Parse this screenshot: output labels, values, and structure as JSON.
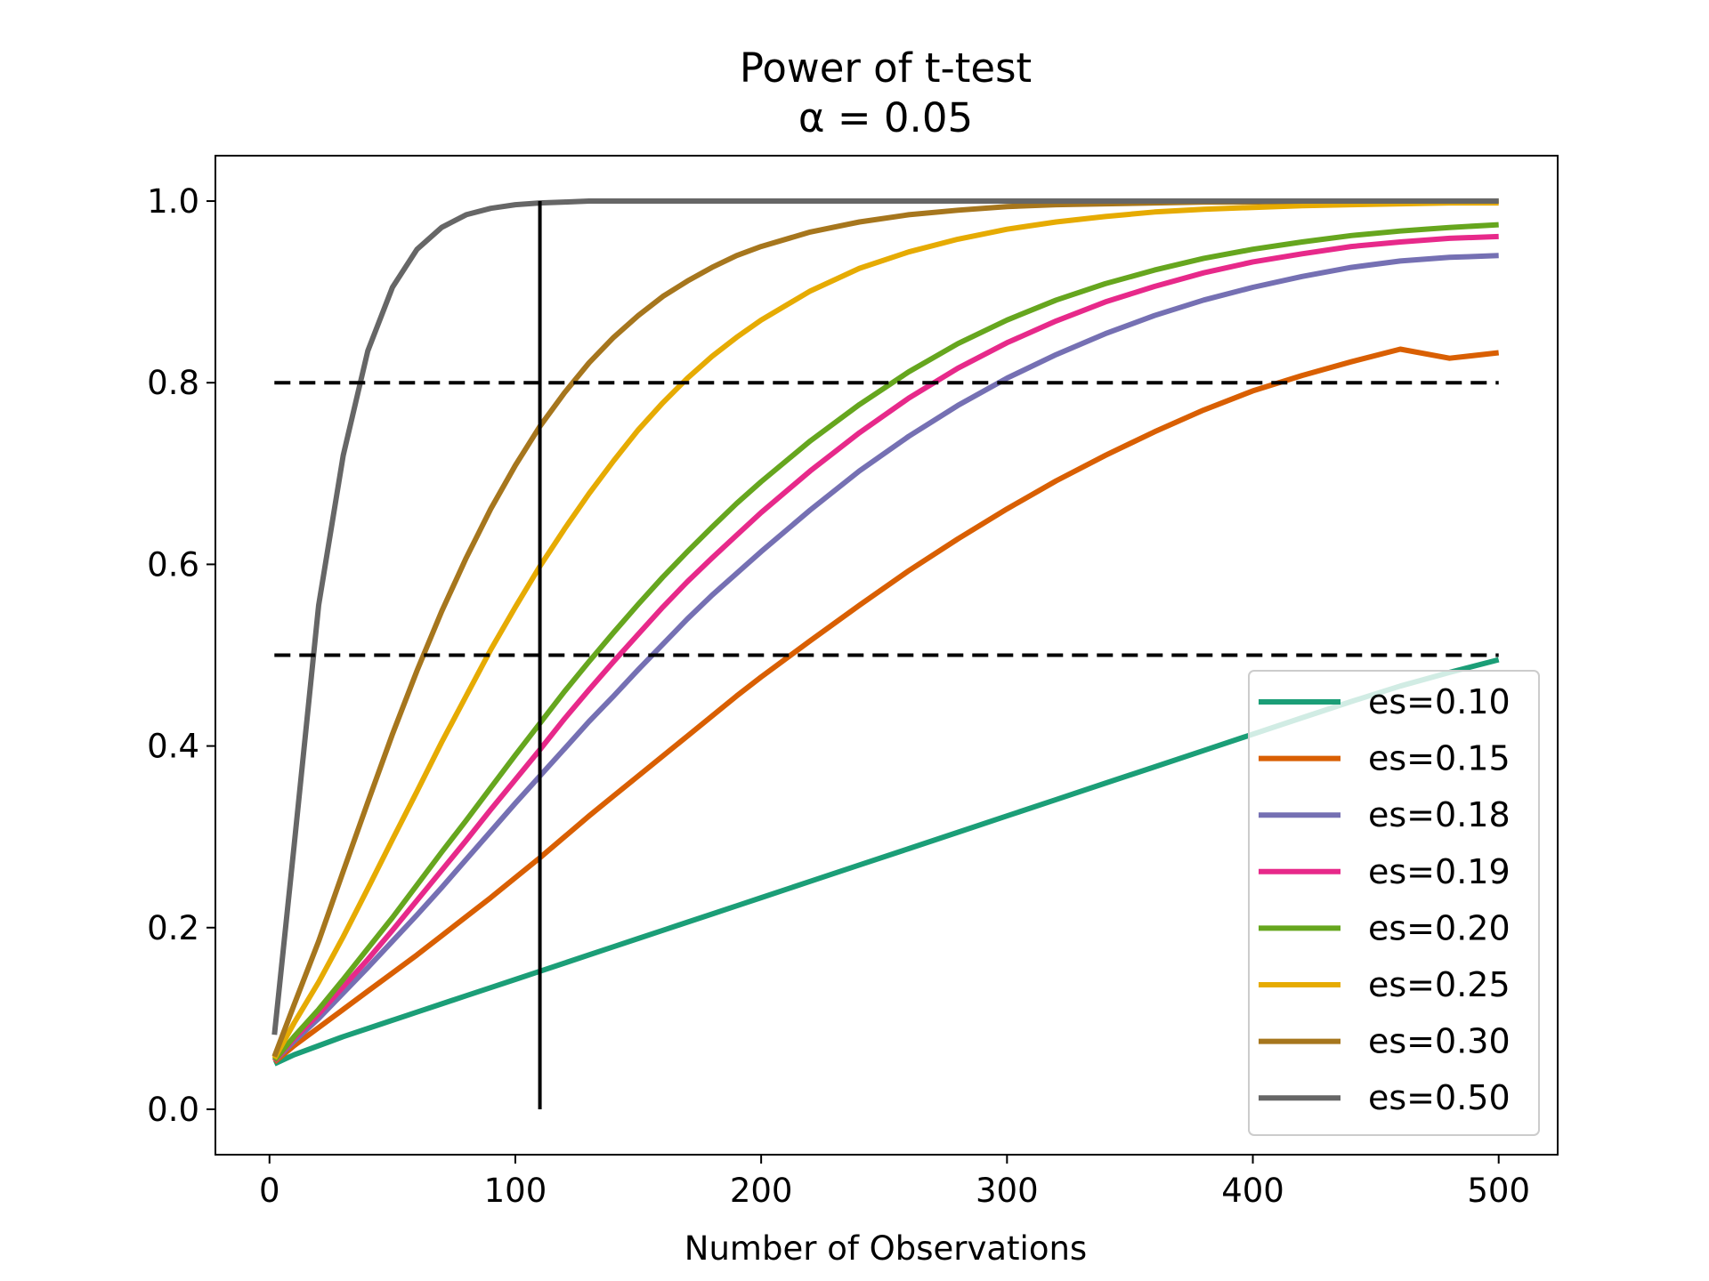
{
  "chart_data": {
    "type": "line",
    "title": "Power of t-test",
    "subtitle": "α = 0.05",
    "xlabel": "Number of Observations",
    "ylabel": "",
    "xlim": [
      -22,
      524
    ],
    "ylim": [
      -0.05,
      1.05
    ],
    "xticks": [
      0,
      100,
      200,
      300,
      400,
      500
    ],
    "yticks": [
      0.0,
      0.2,
      0.4,
      0.6,
      0.8,
      1.0
    ],
    "xtick_labels": [
      "0",
      "100",
      "200",
      "300",
      "400",
      "500"
    ],
    "ytick_labels": [
      "0.0",
      "0.2",
      "0.4",
      "0.6",
      "0.8",
      "1.0"
    ],
    "grid": false,
    "legend_position": "lower-right",
    "x": [
      2,
      10,
      20,
      30,
      40,
      50,
      60,
      70,
      80,
      90,
      100,
      110,
      120,
      130,
      140,
      150,
      160,
      170,
      180,
      190,
      200,
      220,
      240,
      260,
      280,
      300,
      320,
      340,
      360,
      380,
      400,
      420,
      440,
      460,
      480,
      500
    ],
    "series": [
      {
        "name": "es=0.10",
        "color": "#1b9e77",
        "values": [
          0.05,
          0.06,
          0.07,
          0.08,
          0.089,
          0.098,
          0.107,
          0.116,
          0.125,
          0.134,
          0.143,
          0.152,
          0.161,
          0.17,
          0.179,
          0.188,
          0.197,
          0.206,
          0.215,
          0.224,
          0.233,
          0.251,
          0.269,
          0.287,
          0.305,
          0.323,
          0.341,
          0.359,
          0.377,
          0.395,
          0.413,
          0.431,
          0.449,
          0.466,
          0.481,
          0.495
        ]
      },
      {
        "name": "es=0.15",
        "color": "#d95f02",
        "values": [
          0.052,
          0.07,
          0.09,
          0.11,
          0.13,
          0.15,
          0.17,
          0.191,
          0.212,
          0.233,
          0.255,
          0.277,
          0.3,
          0.323,
          0.345,
          0.367,
          0.389,
          0.411,
          0.433,
          0.455,
          0.476,
          0.516,
          0.555,
          0.593,
          0.628,
          0.661,
          0.692,
          0.72,
          0.746,
          0.77,
          0.791,
          0.808,
          0.823,
          0.837,
          0.827,
          0.833
        ]
      },
      {
        "name": "es=0.18",
        "color": "#7570b3",
        "values": [
          0.053,
          0.075,
          0.1,
          0.128,
          0.156,
          0.185,
          0.214,
          0.244,
          0.275,
          0.306,
          0.337,
          0.367,
          0.397,
          0.427,
          0.455,
          0.484,
          0.512,
          0.54,
          0.566,
          0.59,
          0.614,
          0.66,
          0.703,
          0.741,
          0.775,
          0.805,
          0.831,
          0.854,
          0.874,
          0.891,
          0.905,
          0.917,
          0.927,
          0.934,
          0.938,
          0.94
        ]
      },
      {
        "name": "es=0.19",
        "color": "#e7298a",
        "values": [
          0.053,
          0.078,
          0.105,
          0.135,
          0.165,
          0.197,
          0.23,
          0.263,
          0.296,
          0.33,
          0.363,
          0.396,
          0.43,
          0.462,
          0.493,
          0.523,
          0.553,
          0.581,
          0.607,
          0.632,
          0.657,
          0.703,
          0.745,
          0.783,
          0.816,
          0.844,
          0.868,
          0.889,
          0.906,
          0.921,
          0.933,
          0.942,
          0.95,
          0.955,
          0.959,
          0.961
        ]
      },
      {
        "name": "es=0.20",
        "color": "#66a61e",
        "values": [
          0.054,
          0.08,
          0.11,
          0.143,
          0.177,
          0.211,
          0.247,
          0.283,
          0.318,
          0.354,
          0.39,
          0.425,
          0.46,
          0.493,
          0.525,
          0.556,
          0.586,
          0.614,
          0.641,
          0.667,
          0.691,
          0.736,
          0.776,
          0.812,
          0.843,
          0.869,
          0.891,
          0.909,
          0.924,
          0.937,
          0.947,
          0.955,
          0.962,
          0.967,
          0.971,
          0.974
        ]
      },
      {
        "name": "es=0.25",
        "color": "#e6ab02",
        "values": [
          0.056,
          0.095,
          0.14,
          0.19,
          0.243,
          0.297,
          0.35,
          0.404,
          0.455,
          0.506,
          0.553,
          0.598,
          0.639,
          0.678,
          0.714,
          0.748,
          0.778,
          0.805,
          0.829,
          0.85,
          0.869,
          0.901,
          0.926,
          0.944,
          0.958,
          0.969,
          0.977,
          0.983,
          0.988,
          0.991,
          0.993,
          0.995,
          0.996,
          0.997,
          0.998,
          0.998
        ]
      },
      {
        "name": "es=0.30",
        "color": "#a6761d",
        "values": [
          0.058,
          0.115,
          0.185,
          0.262,
          0.338,
          0.413,
          0.483,
          0.548,
          0.607,
          0.661,
          0.709,
          0.752,
          0.789,
          0.822,
          0.85,
          0.874,
          0.895,
          0.912,
          0.927,
          0.94,
          0.95,
          0.966,
          0.977,
          0.985,
          0.99,
          0.994,
          0.996,
          0.997,
          0.998,
          0.999,
          0.999,
          1.0,
          1.0,
          1.0,
          1.0,
          1.0
        ]
      },
      {
        "name": "es=0.50",
        "color": "#666666",
        "values": [
          0.082,
          0.29,
          0.555,
          0.72,
          0.835,
          0.905,
          0.947,
          0.971,
          0.985,
          0.992,
          0.996,
          0.998,
          0.999,
          1.0,
          1.0,
          1.0,
          1.0,
          1.0,
          1.0,
          1.0,
          1.0,
          1.0,
          1.0,
          1.0,
          1.0,
          1.0,
          1.0,
          1.0,
          1.0,
          1.0,
          1.0,
          1.0,
          1.0,
          1.0,
          1.0,
          1.0
        ]
      }
    ],
    "reference_lines": [
      {
        "kind": "horizontal",
        "style": "dashed",
        "y": 0.8,
        "x_from": 2,
        "x_to": 500,
        "color": "#000000"
      },
      {
        "kind": "horizontal",
        "style": "dashed",
        "y": 0.5,
        "x_from": 2,
        "x_to": 500,
        "color": "#000000"
      },
      {
        "kind": "vertical",
        "style": "solid",
        "x": 110,
        "y_from": 0.0,
        "y_to": 1.0,
        "color": "#000000"
      }
    ]
  }
}
